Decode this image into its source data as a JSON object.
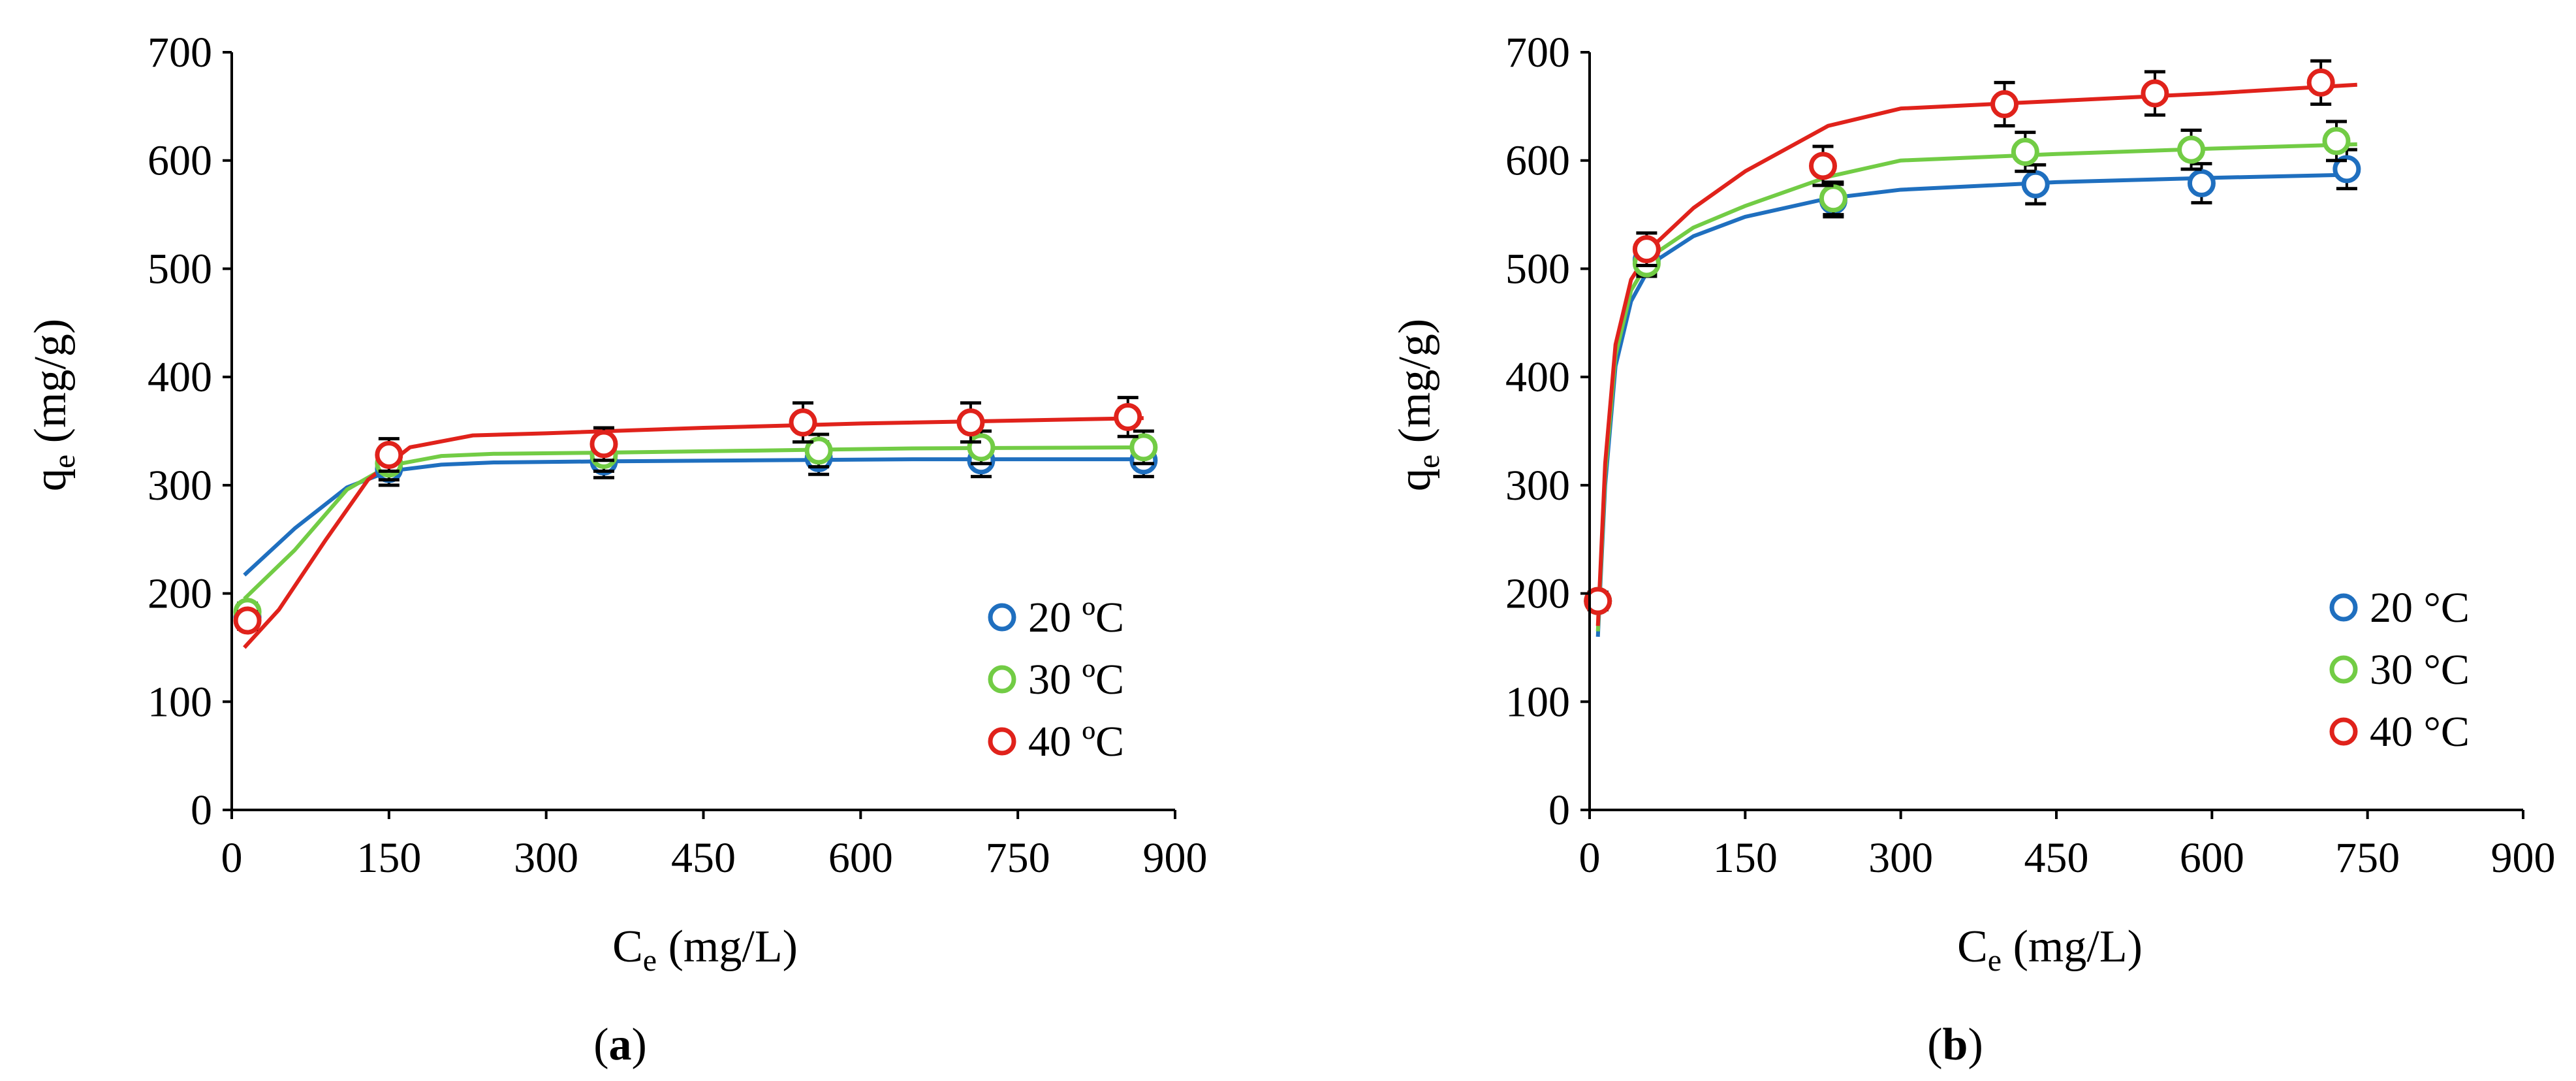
{
  "chart_data": [
    {
      "type": "scatter",
      "panel_label": "a",
      "xlabel": "C",
      "xlabel_sub": "e",
      "xlabel_unit": " (mg/L)",
      "ylabel": "q",
      "ylabel_sub": "e",
      "ylabel_unit": " (mg/g)",
      "xlim": [
        0,
        900
      ],
      "ylim": [
        0,
        700
      ],
      "x_ticks": [
        0,
        150,
        300,
        450,
        600,
        750,
        900
      ],
      "y_ticks": [
        0,
        100,
        200,
        300,
        400,
        500,
        600,
        700
      ],
      "legend_position": "bottom-right",
      "series": [
        {
          "name": "20 ºC",
          "color": "#1f6fbf",
          "points": [
            [
              15,
              178
            ],
            [
              150,
              315
            ],
            [
              355,
              322
            ],
            [
              560,
              325
            ],
            [
              715,
              323
            ],
            [
              870,
              323
            ]
          ],
          "errors": [
            8,
            15,
            15,
            15,
            15,
            15
          ],
          "fit": [
            [
              12,
              217
            ],
            [
              60,
              260
            ],
            [
              110,
              298
            ],
            [
              150,
              313
            ],
            [
              200,
              319
            ],
            [
              250,
              321
            ],
            [
              350,
              322
            ],
            [
              500,
              323
            ],
            [
              650,
              324
            ],
            [
              870,
              324
            ]
          ]
        },
        {
          "name": "30 ºC",
          "color": "#72cc45",
          "points": [
            [
              15,
              183
            ],
            [
              150,
              320
            ],
            [
              355,
              328
            ],
            [
              560,
              332
            ],
            [
              715,
              335
            ],
            [
              870,
              335
            ]
          ],
          "errors": [
            8,
            15,
            15,
            15,
            15,
            15
          ],
          "fit": [
            [
              12,
              195
            ],
            [
              60,
              240
            ],
            [
              110,
              296
            ],
            [
              150,
              318
            ],
            [
              200,
              327
            ],
            [
              250,
              329
            ],
            [
              350,
              330
            ],
            [
              500,
              332
            ],
            [
              650,
              334
            ],
            [
              870,
              335
            ]
          ]
        },
        {
          "name": "40 ºC",
          "color": "#e0221b",
          "points": [
            [
              15,
              175
            ],
            [
              150,
              328
            ],
            [
              355,
              338
            ],
            [
              545,
              358
            ],
            [
              705,
              358
            ],
            [
              855,
              363
            ]
          ],
          "errors": [
            8,
            15,
            15,
            18,
            18,
            18
          ],
          "fit": [
            [
              12,
              150
            ],
            [
              45,
              185
            ],
            [
              90,
              250
            ],
            [
              130,
              305
            ],
            [
              170,
              335
            ],
            [
              230,
              346
            ],
            [
              300,
              348
            ],
            [
              450,
              353
            ],
            [
              600,
              357
            ],
            [
              870,
              362
            ]
          ]
        }
      ]
    },
    {
      "type": "scatter",
      "panel_label": "b",
      "xlabel": "C",
      "xlabel_sub": "e",
      "xlabel_unit": " (mg/L)",
      "ylabel": "q",
      "ylabel_sub": "e",
      "ylabel_unit": "  (mg/g)",
      "xlim": [
        0,
        900
      ],
      "ylim": [
        0,
        700
      ],
      "x_ticks": [
        0,
        150,
        300,
        450,
        600,
        750,
        900
      ],
      "y_ticks": [
        0,
        100,
        200,
        300,
        400,
        500,
        600,
        700
      ],
      "legend_position": "bottom-right",
      "series": [
        {
          "name": "20 °C",
          "color": "#1f6fbf",
          "points": [
            [
              8,
              193
            ],
            [
              55,
              508
            ],
            [
              235,
              563
            ],
            [
              430,
              578
            ],
            [
              590,
              579
            ],
            [
              730,
              592
            ]
          ],
          "errors": [
            8,
            12,
            15,
            18,
            18,
            18
          ],
          "fit": [
            [
              8,
              160
            ],
            [
              15,
              300
            ],
            [
              25,
              410
            ],
            [
              40,
              470
            ],
            [
              60,
              505
            ],
            [
              100,
              530
            ],
            [
              150,
              548
            ],
            [
              230,
              565
            ],
            [
              300,
              573
            ],
            [
              450,
              580
            ],
            [
              600,
              584
            ],
            [
              740,
              587
            ]
          ]
        },
        {
          "name": "30 °C",
          "color": "#72cc45",
          "points": [
            [
              8,
              193
            ],
            [
              55,
              505
            ],
            [
              235,
              565
            ],
            [
              420,
              608
            ],
            [
              580,
              610
            ],
            [
              720,
              618
            ]
          ],
          "errors": [
            8,
            12,
            15,
            18,
            18,
            18
          ],
          "fit": [
            [
              8,
              165
            ],
            [
              15,
              310
            ],
            [
              25,
              420
            ],
            [
              40,
              480
            ],
            [
              60,
              512
            ],
            [
              100,
              538
            ],
            [
              150,
              558
            ],
            [
              230,
              585
            ],
            [
              300,
              600
            ],
            [
              450,
              606
            ],
            [
              600,
              611
            ],
            [
              740,
              615
            ]
          ]
        },
        {
          "name": "40 °C",
          "color": "#e0221b",
          "points": [
            [
              8,
              193
            ],
            [
              55,
              518
            ],
            [
              225,
              595
            ],
            [
              400,
              652
            ],
            [
              545,
              662
            ],
            [
              705,
              672
            ]
          ],
          "errors": [
            8,
            15,
            18,
            20,
            20,
            20
          ],
          "fit": [
            [
              8,
              170
            ],
            [
              15,
              320
            ],
            [
              25,
              430
            ],
            [
              40,
              490
            ],
            [
              60,
              520
            ],
            [
              100,
              556
            ],
            [
              150,
              590
            ],
            [
              230,
              632
            ],
            [
              300,
              648
            ],
            [
              450,
              655
            ],
            [
              600,
              662
            ],
            [
              740,
              670
            ]
          ]
        }
      ]
    }
  ]
}
